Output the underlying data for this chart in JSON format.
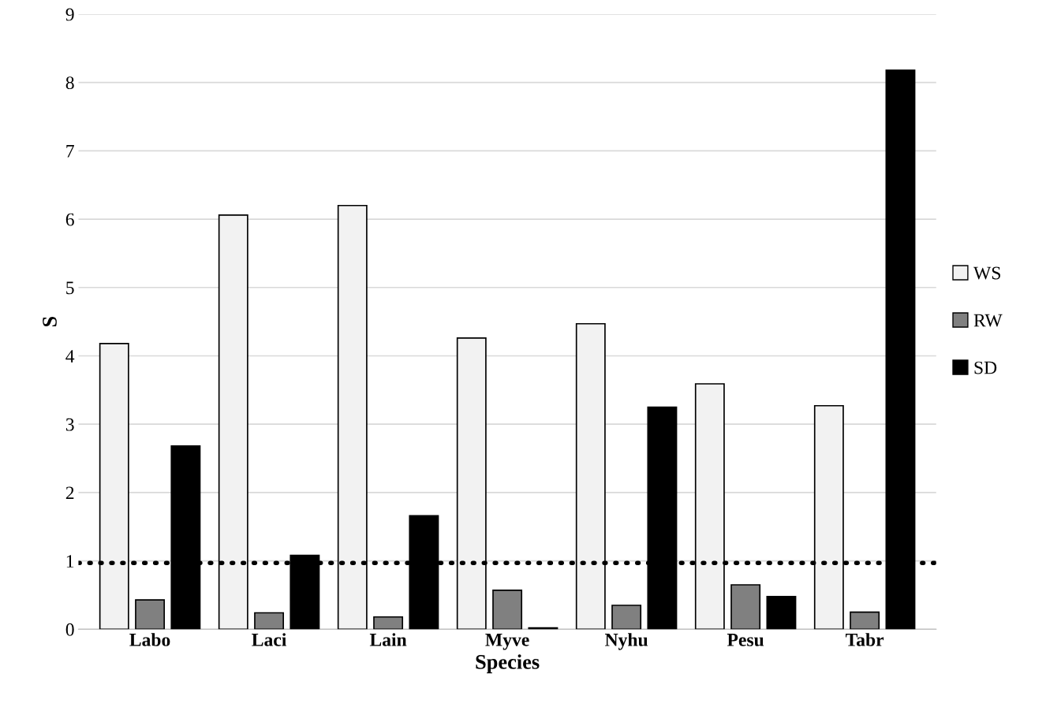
{
  "chart_data": {
    "type": "bar",
    "xlabel": "Species",
    "ylabel": "S",
    "categories": [
      "Labo",
      "Laci",
      "Lain",
      "Myve",
      "Nyhu",
      "Pesu",
      "Tabr"
    ],
    "series": [
      {
        "name": "WS",
        "color": "#f2f2f2",
        "values": [
          4.18,
          6.06,
          6.2,
          4.26,
          4.47,
          3.59,
          3.27
        ]
      },
      {
        "name": "RW",
        "color": "#808080",
        "values": [
          0.43,
          0.24,
          0.18,
          0.57,
          0.35,
          0.65,
          0.25
        ]
      },
      {
        "name": "SD",
        "color": "#000000",
        "values": [
          2.68,
          1.08,
          1.66,
          0.02,
          3.25,
          0.48,
          8.18
        ]
      }
    ],
    "ylim": [
      0,
      9
    ],
    "yticks": [
      0,
      1,
      2,
      3,
      4,
      5,
      6,
      7,
      8,
      9
    ],
    "grid": "y",
    "legend": "right",
    "ref_lines": [
      {
        "axis": "y",
        "value": 0.97,
        "color": "#000000",
        "line_style": "dotted"
      }
    ]
  }
}
